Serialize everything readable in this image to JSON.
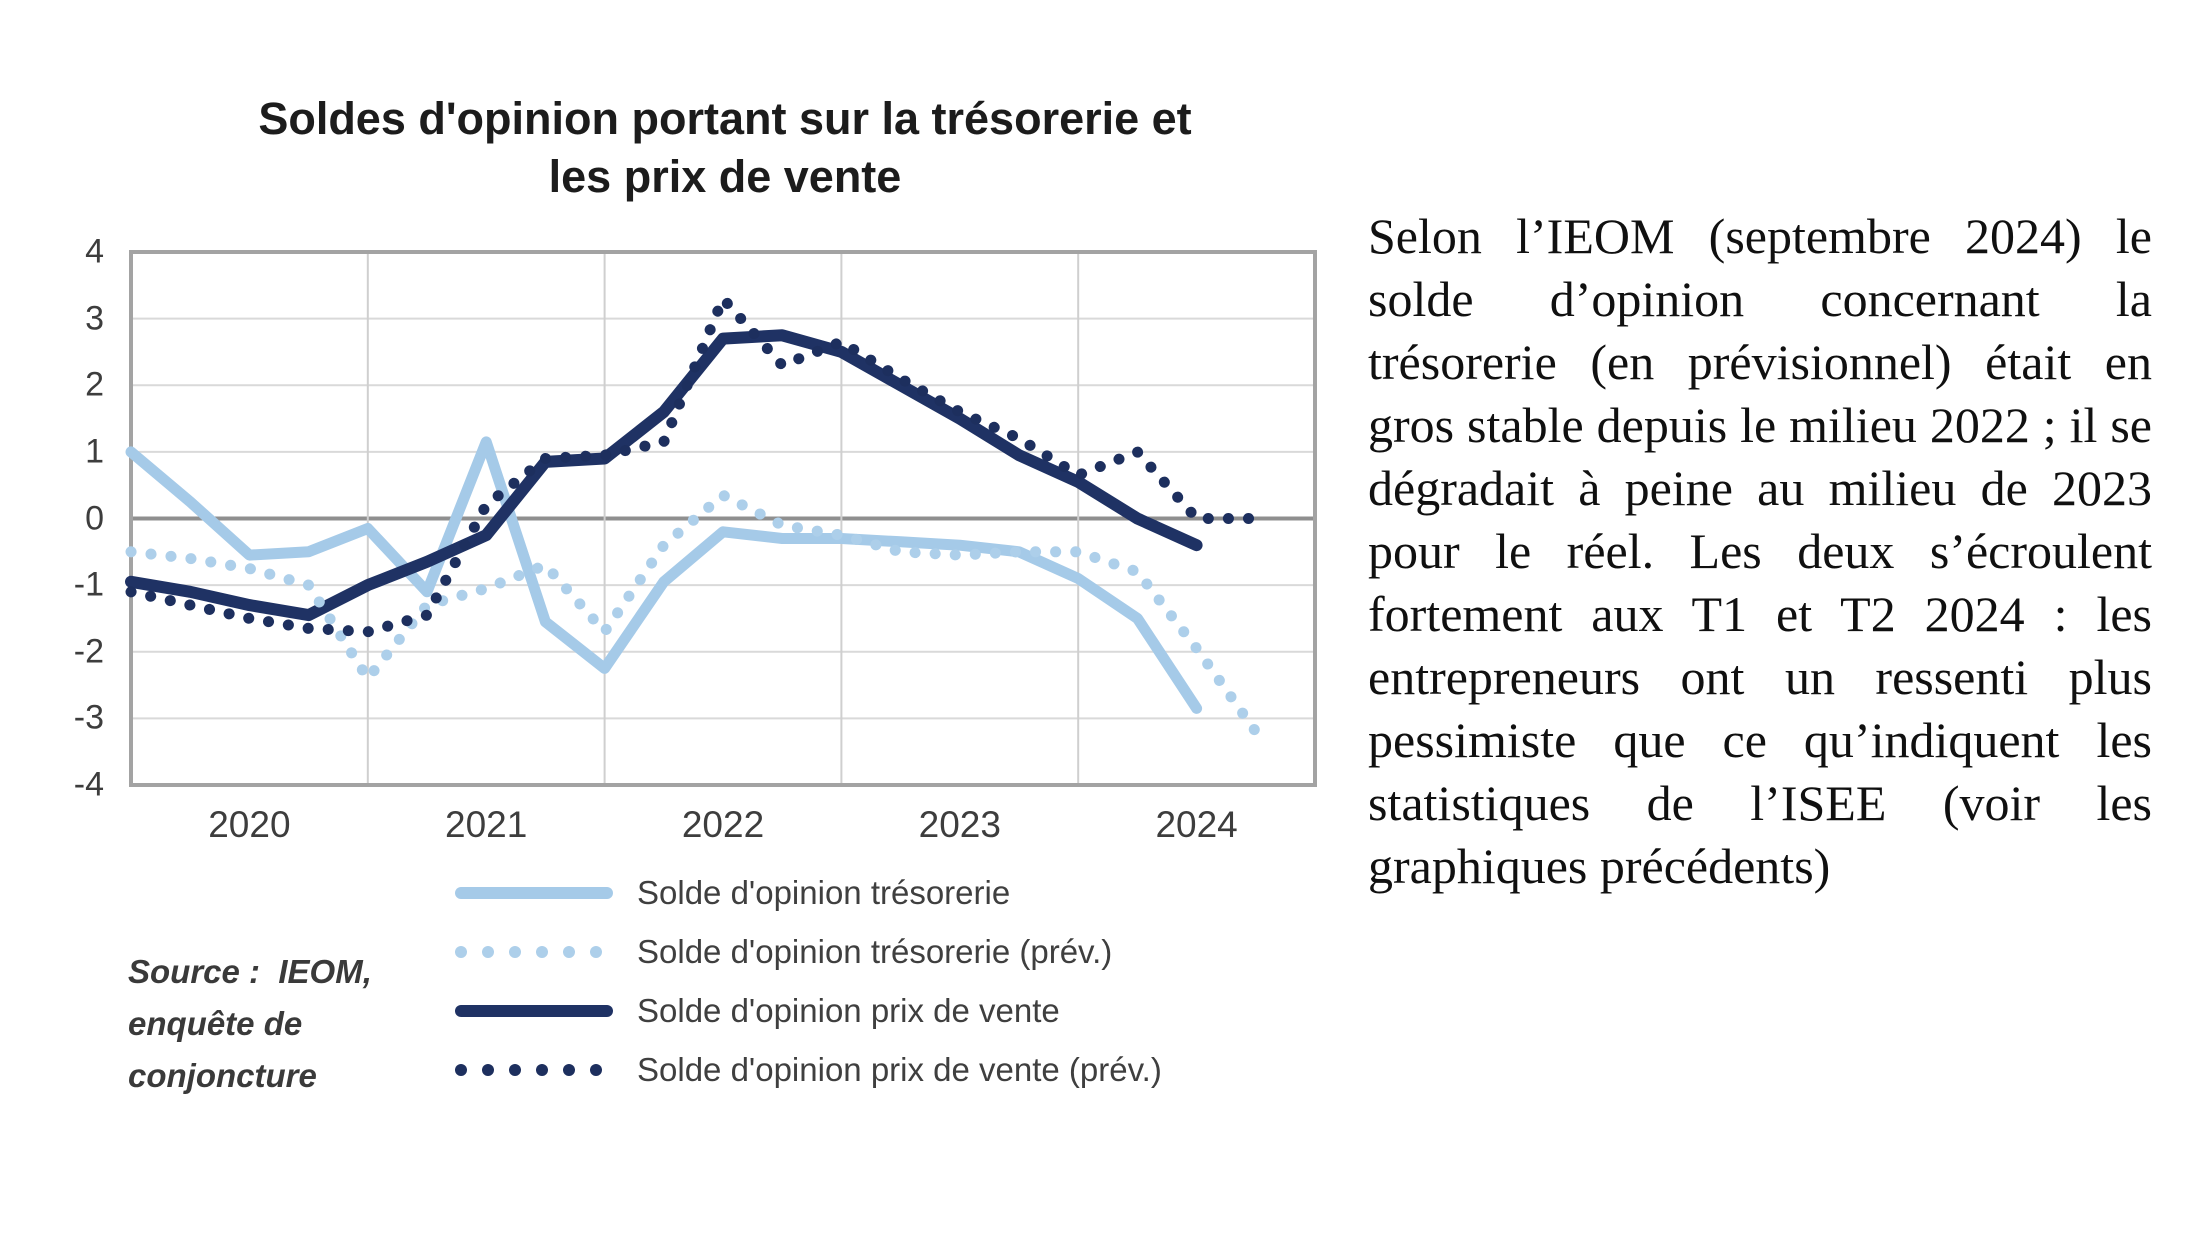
{
  "chart": {
    "title_line1": "Soldes d'opinion portant sur la trésorerie et",
    "title_line2": "les prix de vente",
    "source_lines": [
      "Source :  IEOM,",
      "enquête de",
      "conjoncture"
    ]
  },
  "chart_data": {
    "type": "line",
    "title": "Soldes d'opinion portant sur la trésorerie et les prix de vente",
    "xlabel": "",
    "ylabel": "",
    "ylim": [
      -4,
      4
    ],
    "y_ticks": [
      4,
      3,
      2,
      1,
      0,
      -1,
      -2,
      -3,
      -4
    ],
    "grid": true,
    "legend_position": "bottom",
    "x_tick_labels": [
      "2020",
      "2021",
      "2022",
      "2023",
      "2024"
    ],
    "categories": [
      "2020-T1",
      "2020-T2",
      "2020-T3",
      "2020-T4",
      "2021-T1",
      "2021-T2",
      "2021-T3",
      "2021-T4",
      "2022-T1",
      "2022-T2",
      "2022-T3",
      "2022-T4",
      "2023-T1",
      "2023-T2",
      "2023-T3",
      "2023-T4",
      "2024-T1",
      "2024-T2",
      "2024-T3",
      "2024-T4"
    ],
    "series": [
      {
        "name": "Solde d'opinion trésorerie",
        "style": "solid",
        "color": "#A5CAE8",
        "values": [
          1.0,
          0.25,
          -0.55,
          -0.5,
          -0.15,
          -1.1,
          1.15,
          -1.55,
          -2.25,
          -0.95,
          -0.2,
          -0.3,
          -0.3,
          -0.35,
          -0.4,
          -0.5,
          -0.9,
          -1.5,
          -2.85,
          null
        ]
      },
      {
        "name": "Solde d'opinion trésorerie (prév.)",
        "style": "dotted",
        "color": "#ADCFEA",
        "values": [
          -0.5,
          -0.6,
          -0.75,
          -1.0,
          -2.4,
          -1.3,
          -1.05,
          -0.7,
          -1.7,
          -0.4,
          0.35,
          -0.1,
          -0.25,
          -0.5,
          -0.55,
          -0.5,
          -0.5,
          -0.8,
          -1.95,
          -3.2
        ]
      },
      {
        "name": "Solde d'opinion prix de vente",
        "style": "solid",
        "color": "#1F3264",
        "values": [
          -0.95,
          -1.1,
          -1.3,
          -1.45,
          -1.0,
          -0.65,
          -0.25,
          0.85,
          0.9,
          1.6,
          2.7,
          2.75,
          2.5,
          2.0,
          1.5,
          0.95,
          0.55,
          0.0,
          -0.4,
          null
        ]
      },
      {
        "name": "Solde d'opinion prix de vente (prév.)",
        "style": "dotted",
        "color": "#1D2F5E",
        "values": [
          -1.1,
          -1.3,
          -1.5,
          -1.65,
          -1.7,
          -1.45,
          0.2,
          0.9,
          0.95,
          1.15,
          3.3,
          2.3,
          2.65,
          2.1,
          1.6,
          1.2,
          0.65,
          1.0,
          0.0,
          0.0
        ]
      }
    ],
    "axis_colors": {
      "gridline": "#d9d9d9",
      "zero_line": "#8f8f8f",
      "border": "#a3a3a3",
      "v_gridline": "#cfcfcf"
    }
  },
  "text_panel": {
    "paragraph": "Selon l’IEOM (septembre 2024) le solde d’opinion concernant la trésorerie (en prévisionnel) était en gros stable depuis le milieu 2022 ; il se dégradait à peine au milieu de 2023 pour le réel. Les deux s’écroulent fortement aux T1 et T2 2024 : les entrepreneurs ont un ressenti plus pessimiste que ce qu’indiquent les statistiques de l’ISEE (voir les graphiques précédents)"
  }
}
